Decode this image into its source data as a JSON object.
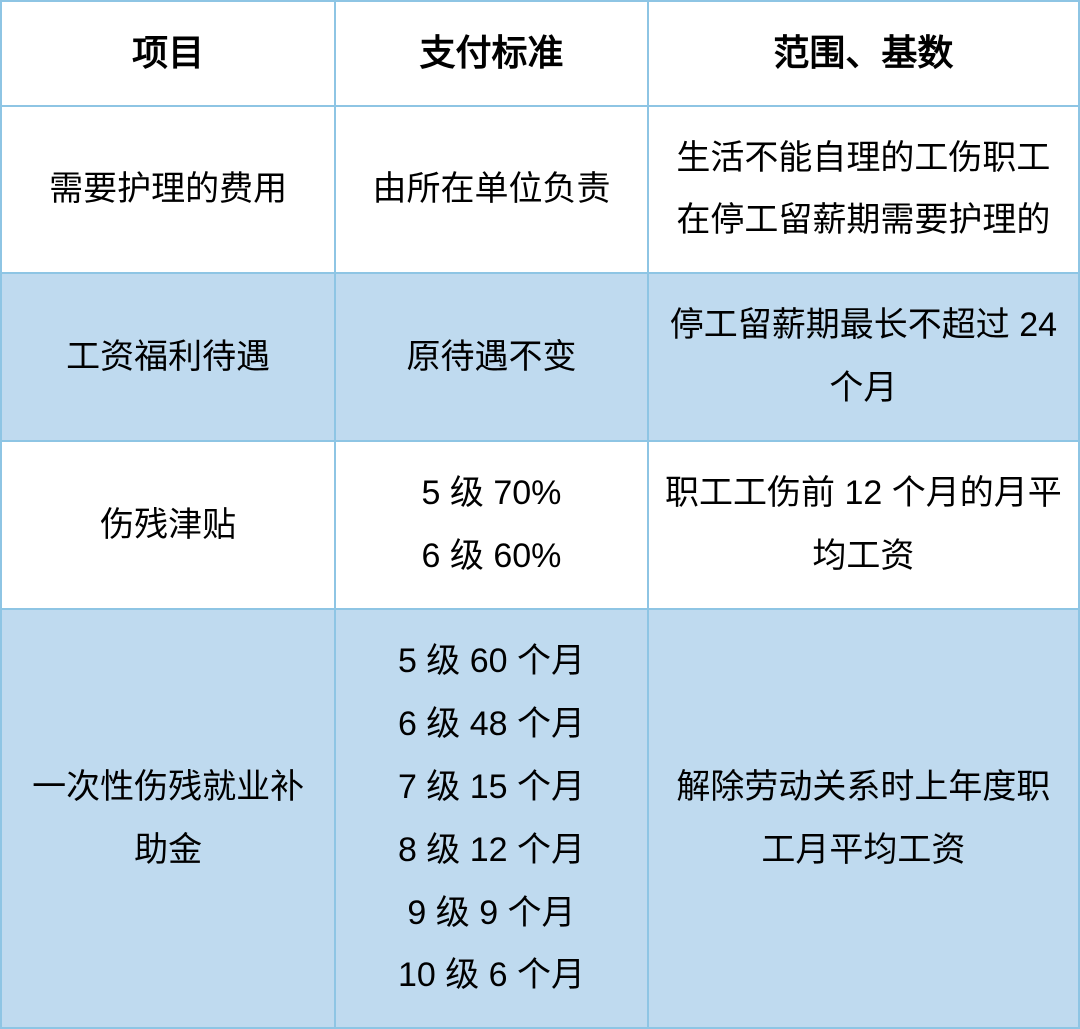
{
  "table": {
    "border_color": "#8ec5e4",
    "alt_row_bg": "#bfdaef",
    "bg_color": "#ffffff",
    "text_color": "#000000",
    "header_fontsize": 36,
    "body_fontsize": 34,
    "col_widths_pct": [
      31,
      29,
      40
    ],
    "headers": {
      "col1": "项目",
      "col2": "支付标准",
      "col3": "范围、基数"
    },
    "rows": [
      {
        "alt": false,
        "col1": "需要护理的费用",
        "col2": "由所在单位负责",
        "col3": "生活不能自理的工伤职工在停工留薪期需要护理的"
      },
      {
        "alt": true,
        "col1": "工资福利待遇",
        "col2": "原待遇不变",
        "col3": "停工留薪期最长不超过 24 个月"
      },
      {
        "alt": false,
        "col1": "伤残津贴",
        "col2": "5 级 70%\n6 级 60%",
        "col3": "职工工伤前 12 个月的月平均工资"
      },
      {
        "alt": true,
        "col1": "一次性伤残就业补助金",
        "col2": "5 级 60 个月\n6 级 48 个月\n7 级 15 个月\n8 级 12 个月\n9 级 9 个月\n10 级 6 个月",
        "col3": "解除劳动关系时上年度职工月平均工资"
      }
    ]
  }
}
